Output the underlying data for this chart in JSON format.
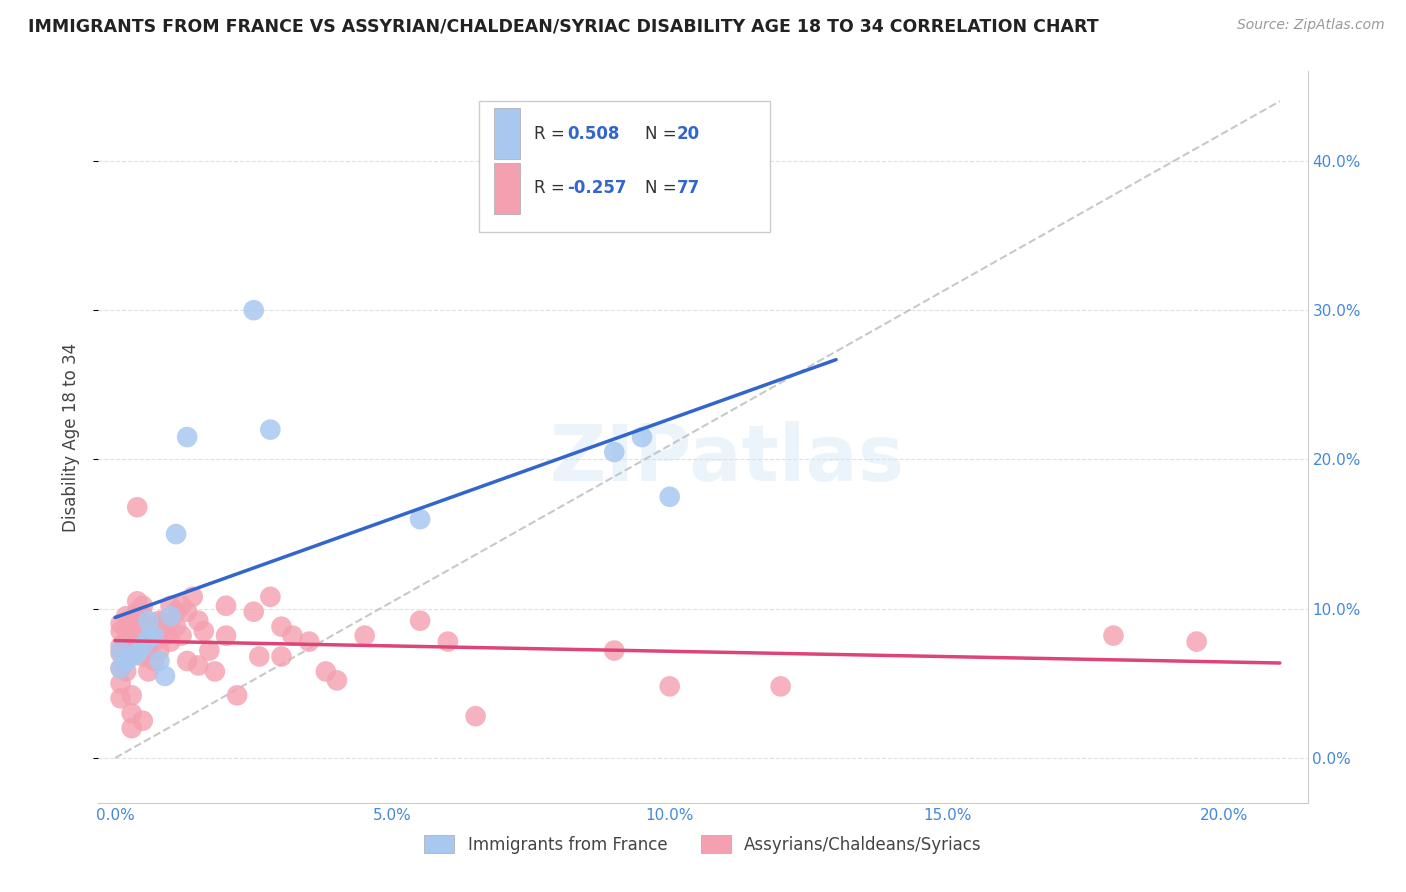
{
  "title": "IMMIGRANTS FROM FRANCE VS ASSYRIAN/CHALDEAN/SYRIAC DISABILITY AGE 18 TO 34 CORRELATION CHART",
  "source": "Source: ZipAtlas.com",
  "ylabel": "Disability Age 18 to 34",
  "x_ticks": [
    0.0,
    0.05,
    0.1,
    0.15,
    0.2
  ],
  "y_ticks": [
    0.0,
    0.1,
    0.2,
    0.3,
    0.4
  ],
  "xlim": [
    -0.003,
    0.215
  ],
  "ylim": [
    -0.03,
    0.46
  ],
  "blue_color": "#a8c8f0",
  "pink_color": "#f4a0b0",
  "blue_line_color": "#3366cc",
  "pink_line_color": "#dd4477",
  "ref_line_color": "#bbbbbb",
  "legend_R1_val": "0.508",
  "legend_N1_val": "20",
  "legend_R2_val": "-0.257",
  "legend_N2_val": "77",
  "watermark": "ZIPatlas",
  "blue_scatter_x": [
    0.001,
    0.001,
    0.002,
    0.003,
    0.004,
    0.005,
    0.006,
    0.006,
    0.007,
    0.008,
    0.009,
    0.01,
    0.011,
    0.013,
    0.025,
    0.028,
    0.055,
    0.09,
    0.095,
    0.1
  ],
  "blue_scatter_y": [
    0.072,
    0.06,
    0.065,
    0.068,
    0.07,
    0.075,
    0.092,
    0.08,
    0.082,
    0.065,
    0.055,
    0.095,
    0.15,
    0.215,
    0.3,
    0.22,
    0.16,
    0.205,
    0.215,
    0.175
  ],
  "pink_scatter_x": [
    0.001,
    0.001,
    0.001,
    0.001,
    0.001,
    0.001,
    0.001,
    0.002,
    0.002,
    0.002,
    0.002,
    0.002,
    0.003,
    0.003,
    0.003,
    0.003,
    0.003,
    0.003,
    0.004,
    0.004,
    0.004,
    0.004,
    0.004,
    0.005,
    0.005,
    0.005,
    0.005,
    0.005,
    0.005,
    0.006,
    0.006,
    0.006,
    0.006,
    0.007,
    0.007,
    0.007,
    0.008,
    0.008,
    0.008,
    0.009,
    0.009,
    0.01,
    0.01,
    0.01,
    0.011,
    0.011,
    0.012,
    0.012,
    0.013,
    0.013,
    0.014,
    0.015,
    0.015,
    0.016,
    0.017,
    0.018,
    0.02,
    0.02,
    0.022,
    0.025,
    0.026,
    0.028,
    0.03,
    0.03,
    0.032,
    0.035,
    0.038,
    0.04,
    0.045,
    0.055,
    0.06,
    0.065,
    0.09,
    0.1,
    0.12,
    0.18,
    0.195
  ],
  "pink_scatter_y": [
    0.075,
    0.085,
    0.09,
    0.07,
    0.06,
    0.05,
    0.04,
    0.085,
    0.078,
    0.068,
    0.058,
    0.095,
    0.09,
    0.082,
    0.072,
    0.042,
    0.03,
    0.02,
    0.098,
    0.105,
    0.092,
    0.078,
    0.168,
    0.102,
    0.095,
    0.088,
    0.078,
    0.068,
    0.025,
    0.082,
    0.075,
    0.068,
    0.058,
    0.088,
    0.078,
    0.065,
    0.092,
    0.085,
    0.072,
    0.092,
    0.082,
    0.102,
    0.092,
    0.078,
    0.098,
    0.088,
    0.102,
    0.082,
    0.098,
    0.065,
    0.108,
    0.092,
    0.062,
    0.085,
    0.072,
    0.058,
    0.102,
    0.082,
    0.042,
    0.098,
    0.068,
    0.108,
    0.088,
    0.068,
    0.082,
    0.078,
    0.058,
    0.052,
    0.082,
    0.092,
    0.078,
    0.028,
    0.072,
    0.048,
    0.048,
    0.082,
    0.078
  ]
}
